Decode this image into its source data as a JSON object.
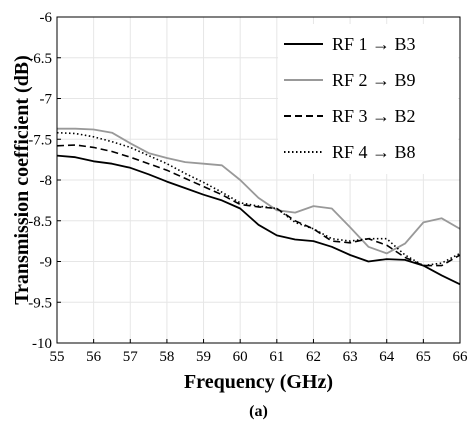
{
  "chart_data": {
    "type": "line",
    "xlabel": "Frequency (GHz)",
    "ylabel": "Transmission coefficient (dB)",
    "caption": "(a)",
    "xlim": [
      55,
      66
    ],
    "ylim": [
      -10,
      -6
    ],
    "xticks": [
      55,
      56,
      57,
      58,
      59,
      60,
      61,
      62,
      63,
      64,
      65,
      66
    ],
    "yticks": [
      -10,
      -9.5,
      -9,
      -8.5,
      -8,
      -7.5,
      -7,
      -6.5,
      -6
    ],
    "ytick_labels": [
      "-10",
      "-9.5",
      "-9",
      "-8.5",
      "-8",
      "-7.5",
      "-7",
      "-6.5",
      "-6"
    ],
    "grid": true,
    "legend_position": "top-right",
    "series": [
      {
        "name": "RF 1 → B3",
        "color": "#000000",
        "style": "solid",
        "x": [
          55,
          55.5,
          56,
          56.5,
          57,
          57.5,
          58,
          58.5,
          59,
          59.5,
          60,
          60.5,
          61,
          61.5,
          62,
          62.5,
          63,
          63.5,
          64,
          64.5,
          65,
          65.5,
          66
        ],
        "y": [
          -7.7,
          -7.72,
          -7.77,
          -7.8,
          -7.85,
          -7.93,
          -8.02,
          -8.1,
          -8.18,
          -8.25,
          -8.35,
          -8.55,
          -8.68,
          -8.73,
          -8.75,
          -8.82,
          -8.92,
          -9.0,
          -8.97,
          -8.98,
          -9.05,
          -9.17,
          -9.28
        ]
      },
      {
        "name": "RF 2 → B9",
        "color": "#999999",
        "style": "solid",
        "x": [
          55,
          55.5,
          56,
          56.5,
          57,
          57.5,
          58,
          58.5,
          59,
          59.5,
          60,
          60.5,
          61,
          61.5,
          62,
          62.5,
          63,
          63.5,
          64,
          64.5,
          65,
          65.5,
          66
        ],
        "y": [
          -7.37,
          -7.37,
          -7.38,
          -7.42,
          -7.55,
          -7.67,
          -7.73,
          -7.78,
          -7.8,
          -7.82,
          -8.0,
          -8.22,
          -8.37,
          -8.4,
          -8.32,
          -8.35,
          -8.58,
          -8.82,
          -8.9,
          -8.78,
          -8.52,
          -8.47,
          -8.6
        ]
      },
      {
        "name": "RF 3 → B2",
        "color": "#000000",
        "style": "dashed",
        "x": [
          55,
          55.5,
          56,
          56.5,
          57,
          57.5,
          58,
          58.5,
          59,
          59.5,
          60,
          60.5,
          61,
          61.5,
          62,
          62.5,
          63,
          63.5,
          64,
          64.5,
          65,
          65.5,
          66
        ],
        "y": [
          -7.58,
          -7.57,
          -7.6,
          -7.65,
          -7.72,
          -7.8,
          -7.88,
          -7.98,
          -8.08,
          -8.18,
          -8.3,
          -8.33,
          -8.35,
          -8.5,
          -8.6,
          -8.75,
          -8.77,
          -8.72,
          -8.8,
          -8.95,
          -9.05,
          -9.05,
          -8.92
        ]
      },
      {
        "name": "RF 4 → B8",
        "color": "#000000",
        "style": "dotted",
        "x": [
          55,
          55.5,
          56,
          56.5,
          57,
          57.5,
          58,
          58.5,
          59,
          59.5,
          60,
          60.5,
          61,
          61.5,
          62,
          62.5,
          63,
          63.5,
          64,
          64.5,
          65,
          65.5,
          66
        ],
        "y": [
          -7.42,
          -7.43,
          -7.47,
          -7.53,
          -7.6,
          -7.7,
          -7.8,
          -7.92,
          -8.03,
          -8.15,
          -8.28,
          -8.32,
          -8.35,
          -8.52,
          -8.6,
          -8.72,
          -8.75,
          -8.72,
          -8.72,
          -8.92,
          -9.05,
          -9.02,
          -8.9
        ]
      }
    ]
  }
}
